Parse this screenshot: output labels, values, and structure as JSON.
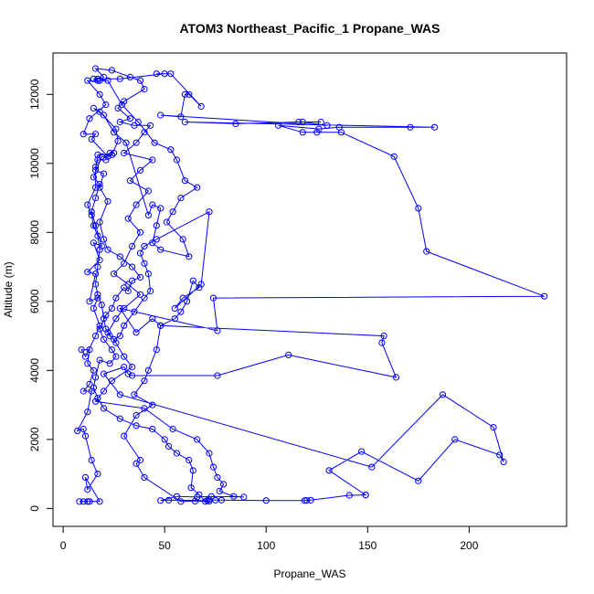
{
  "chart_data": {
    "type": "line",
    "title": "ATOM3 Northeast_Pacific_1 Propane_WAS",
    "xlabel": "Propane_WAS",
    "ylabel": "Altitude (m)",
    "xlim": [
      -5,
      248
    ],
    "ylim": [
      -520,
      13200
    ],
    "xticks": [
      0,
      50,
      100,
      150,
      200
    ],
    "yticks": [
      0,
      2000,
      4000,
      6000,
      8000,
      10000,
      12000
    ],
    "series": [
      {
        "name": "",
        "color": "#0000ff",
        "points": [
          [
            12,
            200
          ],
          [
            8,
            200
          ],
          [
            13,
            200
          ],
          [
            10,
            200
          ],
          [
            18,
            200
          ],
          [
            11,
            900
          ],
          [
            12,
            550
          ],
          [
            17,
            1000
          ],
          [
            14,
            1400
          ],
          [
            11,
            2100
          ],
          [
            10,
            2300
          ],
          [
            7,
            2250
          ],
          [
            12,
            2800
          ],
          [
            14,
            3400
          ],
          [
            10,
            3400
          ],
          [
            13,
            3600
          ],
          [
            15,
            4000
          ],
          [
            12,
            4200
          ],
          [
            13,
            4600
          ],
          [
            9,
            4600
          ],
          [
            11,
            4400
          ],
          [
            16,
            5000
          ],
          [
            18,
            5300
          ],
          [
            15,
            5800
          ],
          [
            17,
            6100
          ],
          [
            13,
            6000
          ],
          [
            16,
            6800
          ],
          [
            12,
            6850
          ],
          [
            18,
            7200
          ],
          [
            15,
            7700
          ],
          [
            19,
            7600
          ],
          [
            16,
            8200
          ],
          [
            14,
            8600
          ],
          [
            16,
            9000
          ],
          [
            18,
            9400
          ],
          [
            15,
            9600
          ],
          [
            19,
            10200
          ],
          [
            22,
            10200
          ],
          [
            14,
            10700
          ],
          [
            16,
            10850
          ],
          [
            10,
            10850
          ],
          [
            13,
            11300
          ],
          [
            21,
            11700
          ],
          [
            18,
            12000
          ],
          [
            12,
            12400
          ],
          [
            18,
            12400
          ],
          [
            20,
            12500
          ],
          [
            16,
            12750
          ],
          [
            24,
            12700
          ],
          [
            33,
            12500
          ],
          [
            38,
            12400
          ],
          [
            40,
            12150
          ],
          [
            30,
            11800
          ],
          [
            27,
            11600
          ],
          [
            33,
            11300
          ],
          [
            28,
            11200
          ],
          [
            35,
            11100
          ],
          [
            43,
            11100
          ],
          [
            40,
            10900
          ],
          [
            36,
            10600
          ],
          [
            30,
            10300
          ],
          [
            44,
            10100
          ],
          [
            38,
            9800
          ],
          [
            33,
            9500
          ],
          [
            42,
            9200
          ],
          [
            36,
            8800
          ],
          [
            32,
            8400
          ],
          [
            38,
            8000
          ],
          [
            34,
            7600
          ],
          [
            30,
            7100
          ],
          [
            25,
            6800
          ],
          [
            32,
            6500
          ],
          [
            38,
            6200
          ],
          [
            30,
            5800
          ],
          [
            26,
            5500
          ],
          [
            22,
            5100
          ],
          [
            26,
            4800
          ],
          [
            30,
            4400
          ],
          [
            34,
            4100
          ],
          [
            24,
            3700
          ],
          [
            20,
            3400
          ],
          [
            16,
            3100
          ],
          [
            40,
            2900
          ],
          [
            54,
            2300
          ],
          [
            66,
            2000
          ],
          [
            72,
            1600
          ],
          [
            74,
            1200
          ],
          [
            76,
            900
          ],
          [
            79,
            700
          ],
          [
            77,
            500
          ],
          [
            84,
            350
          ],
          [
            89,
            330
          ],
          [
            73,
            350
          ],
          [
            66,
            330
          ],
          [
            56,
            350
          ],
          [
            48,
            230
          ],
          [
            52,
            240
          ],
          [
            71,
            230
          ],
          [
            72,
            260
          ],
          [
            75,
            240
          ],
          [
            78,
            240
          ],
          [
            100,
            230
          ],
          [
            120,
            230
          ],
          [
            119,
            230
          ],
          [
            122,
            240
          ],
          [
            141,
            380
          ],
          [
            149,
            390
          ],
          [
            149,
            390
          ],
          [
            131,
            1100
          ],
          [
            147,
            1650
          ],
          [
            175,
            800
          ],
          [
            193,
            2000
          ],
          [
            215,
            1550
          ],
          [
            217,
            1350
          ],
          [
            212,
            2350
          ],
          [
            187,
            3300
          ],
          [
            152,
            1200
          ],
          [
            28,
            3300
          ],
          [
            20,
            3900
          ],
          [
            30,
            4100
          ],
          [
            32,
            3900
          ],
          [
            34,
            3850
          ],
          [
            76,
            3850
          ],
          [
            111,
            4450
          ],
          [
            164,
            3800
          ],
          [
            157,
            4800
          ],
          [
            158,
            5000
          ],
          [
            48,
            5300
          ],
          [
            44,
            5500
          ],
          [
            36,
            5100
          ],
          [
            28,
            5800
          ],
          [
            76,
            5150
          ],
          [
            74,
            6100
          ],
          [
            237,
            6150
          ],
          [
            179,
            7450
          ],
          [
            175,
            8700
          ],
          [
            163,
            10200
          ],
          [
            137,
            10900
          ],
          [
            125,
            10900
          ],
          [
            118,
            10900
          ],
          [
            106,
            11100
          ],
          [
            126,
            11000
          ],
          [
            136,
            11050
          ],
          [
            171,
            11050
          ],
          [
            183,
            11050
          ],
          [
            60,
            11200
          ],
          [
            85,
            11150
          ],
          [
            116,
            11200
          ],
          [
            127,
            11200
          ],
          [
            118,
            11200
          ],
          [
            130,
            11100
          ],
          [
            48,
            11400
          ],
          [
            58,
            11350
          ],
          [
            60,
            12000
          ],
          [
            62,
            12000
          ],
          [
            68,
            11650
          ],
          [
            53,
            12600
          ],
          [
            46,
            12600
          ],
          [
            50,
            12600
          ],
          [
            28,
            12450
          ],
          [
            17,
            12450
          ],
          [
            15,
            12450
          ],
          [
            17,
            12400
          ],
          [
            22,
            12400
          ],
          [
            29,
            11700
          ],
          [
            37,
            11200
          ],
          [
            45,
            10600
          ],
          [
            53,
            10400
          ],
          [
            56,
            10100
          ],
          [
            60,
            9500
          ],
          [
            66,
            9300
          ],
          [
            58,
            9000
          ],
          [
            54,
            8600
          ],
          [
            51,
            8300
          ],
          [
            59,
            7800
          ],
          [
            62,
            7300
          ],
          [
            48,
            7500
          ],
          [
            44,
            7700
          ],
          [
            46,
            8200
          ],
          [
            48,
            8700
          ],
          [
            44,
            8800
          ],
          [
            42,
            8500
          ],
          [
            31,
            10600
          ],
          [
            25,
            10900
          ],
          [
            20,
            11400
          ],
          [
            15,
            11600
          ],
          [
            18,
            11500
          ],
          [
            26,
            11000
          ],
          [
            27,
            10650
          ],
          [
            24,
            10250
          ],
          [
            17,
            10250
          ],
          [
            16,
            9800
          ],
          [
            20,
            9700
          ],
          [
            18,
            9300
          ],
          [
            22,
            8900
          ],
          [
            18,
            8300
          ],
          [
            20,
            7800
          ],
          [
            22,
            7500
          ],
          [
            28,
            7300
          ],
          [
            34,
            7000
          ],
          [
            38,
            6700
          ],
          [
            34,
            6600
          ],
          [
            32,
            6300
          ],
          [
            30,
            6400
          ],
          [
            26,
            6100
          ],
          [
            24,
            5800
          ],
          [
            21,
            5600
          ],
          [
            18,
            5200
          ],
          [
            20,
            4900
          ],
          [
            24,
            4600
          ],
          [
            26,
            4400
          ],
          [
            23,
            4200
          ],
          [
            18,
            4300
          ],
          [
            16,
            3800
          ],
          [
            15,
            3500
          ],
          [
            17,
            3200
          ],
          [
            20,
            2900
          ],
          [
            28,
            2600
          ],
          [
            36,
            2400
          ],
          [
            44,
            2300
          ],
          [
            50,
            2000
          ],
          [
            52,
            1800
          ],
          [
            56,
            1600
          ],
          [
            62,
            1400
          ],
          [
            64,
            1100
          ],
          [
            63,
            600
          ],
          [
            67,
            400
          ],
          [
            70,
            200
          ],
          [
            72,
            210
          ],
          [
            65,
            210
          ],
          [
            58,
            200
          ],
          [
            40,
            900
          ],
          [
            36,
            1300
          ],
          [
            38,
            1400
          ],
          [
            30,
            2100
          ],
          [
            36,
            2700
          ],
          [
            44,
            3000
          ],
          [
            35,
            3300
          ],
          [
            40,
            3700
          ],
          [
            42,
            4000
          ],
          [
            46,
            4600
          ],
          [
            48,
            5300
          ],
          [
            55,
            5500
          ],
          [
            58,
            5700
          ],
          [
            61,
            6000
          ],
          [
            64,
            6600
          ],
          [
            67,
            6400
          ],
          [
            59,
            6100
          ],
          [
            55,
            5800
          ],
          [
            68,
            6500
          ],
          [
            72,
            8600
          ],
          [
            46,
            7800
          ],
          [
            40,
            7600
          ],
          [
            38,
            7400
          ],
          [
            40,
            7100
          ],
          [
            42,
            6800
          ],
          [
            43,
            6300
          ],
          [
            40,
            6100
          ],
          [
            35,
            5700
          ],
          [
            30,
            5300
          ],
          [
            28,
            5000
          ],
          [
            25,
            4900
          ],
          [
            23,
            5000
          ],
          [
            21,
            5200
          ],
          [
            20,
            5500
          ],
          [
            19,
            5900
          ],
          [
            17,
            6200
          ],
          [
            16,
            6500
          ],
          [
            17,
            7000
          ],
          [
            18,
            7500
          ],
          [
            17,
            7900
          ],
          [
            15,
            8200
          ],
          [
            14,
            8500
          ],
          [
            12,
            8800
          ],
          [
            16,
            9300
          ],
          [
            16,
            9900
          ],
          [
            17,
            10100
          ],
          [
            21,
            10100
          ],
          [
            23,
            10300
          ],
          [
            25,
            10300
          ]
        ]
      }
    ]
  }
}
